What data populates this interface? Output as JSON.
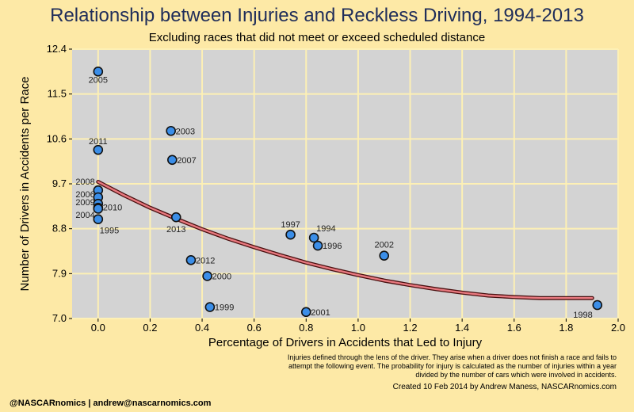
{
  "chart_data": {
    "type": "scatter",
    "title": "Relationship between Injuries and Reckless Driving, 1994-2013",
    "subtitle": "Excluding races that did not meet or exceed scheduled distance",
    "xlabel": "Percentage of Drivers in Accidents that Led to Injury",
    "ylabel": "Number of Drivers in Accidents per Race",
    "xlim": [
      -0.1,
      2.0
    ],
    "ylim": [
      7.0,
      12.4
    ],
    "xticks": [
      "0.0",
      "0.2",
      "0.4",
      "0.6",
      "0.8",
      "1.0",
      "1.2",
      "1.4",
      "1.6",
      "1.8",
      "2.0"
    ],
    "yticks": [
      "7.0",
      "7.9",
      "8.8",
      "9.7",
      "10.6",
      "11.5",
      "12.4"
    ],
    "grid": true,
    "points": [
      {
        "label": "2005",
        "x": 0.0,
        "y": 11.95
      },
      {
        "label": "2011",
        "x": 0.0,
        "y": 10.38
      },
      {
        "label": "2008",
        "x": 0.0,
        "y": 9.57
      },
      {
        "label": "2006",
        "x": 0.0,
        "y": 9.43
      },
      {
        "label": "2009",
        "x": 0.0,
        "y": 9.3
      },
      {
        "label": "2004",
        "x": 0.0,
        "y": 9.22
      },
      {
        "label": "2010",
        "x": 0.0,
        "y": 9.2
      },
      {
        "label": "1995",
        "x": 0.0,
        "y": 8.99
      },
      {
        "label": "2003",
        "x": 0.28,
        "y": 10.76
      },
      {
        "label": "2007",
        "x": 0.285,
        "y": 10.18
      },
      {
        "label": "2013",
        "x": 0.3,
        "y": 9.03
      },
      {
        "label": "2012",
        "x": 0.357,
        "y": 8.17
      },
      {
        "label": "2000",
        "x": 0.42,
        "y": 7.85
      },
      {
        "label": "1999",
        "x": 0.43,
        "y": 7.23
      },
      {
        "label": "2001",
        "x": 0.8,
        "y": 7.13
      },
      {
        "label": "1997",
        "x": 0.74,
        "y": 8.68
      },
      {
        "label": "1994",
        "x": 0.83,
        "y": 8.62
      },
      {
        "label": "1996",
        "x": 0.845,
        "y": 8.46
      },
      {
        "label": "2002",
        "x": 1.1,
        "y": 8.26
      },
      {
        "label": "1998",
        "x": 1.92,
        "y": 7.27
      }
    ],
    "trend": {
      "x": [
        0.0,
        0.1,
        0.2,
        0.3,
        0.4,
        0.5,
        0.6,
        0.7,
        0.8,
        0.9,
        1.0,
        1.1,
        1.2,
        1.3,
        1.4,
        1.5,
        1.6,
        1.7,
        1.8,
        1.9
      ],
      "y": [
        9.74,
        9.47,
        9.22,
        9.0,
        8.79,
        8.6,
        8.43,
        8.27,
        8.12,
        7.99,
        7.87,
        7.76,
        7.67,
        7.59,
        7.52,
        7.46,
        7.43,
        7.41,
        7.41,
        7.41
      ]
    }
  },
  "note": "Injuries defined through the lens of the driver. They arise when a driver does not finish a race and fails to attempt the following event. The probability for injury is calculated as the number of injuries within a year divided by the number of cars which were involved in accidents.",
  "credit": "Created 10 Feb 2014 by Andrew Maness, NASCARnomics.com",
  "footer": "@NASCARnomics | andrew@nascarnomics.com",
  "colors": {
    "background": "#fde9a6",
    "panel": "#d3d3d3",
    "grid": "#fdf0b5",
    "point_fill": "#3b8ee8",
    "trend_inner": "#e8797f",
    "title": "#1f2d5a"
  }
}
